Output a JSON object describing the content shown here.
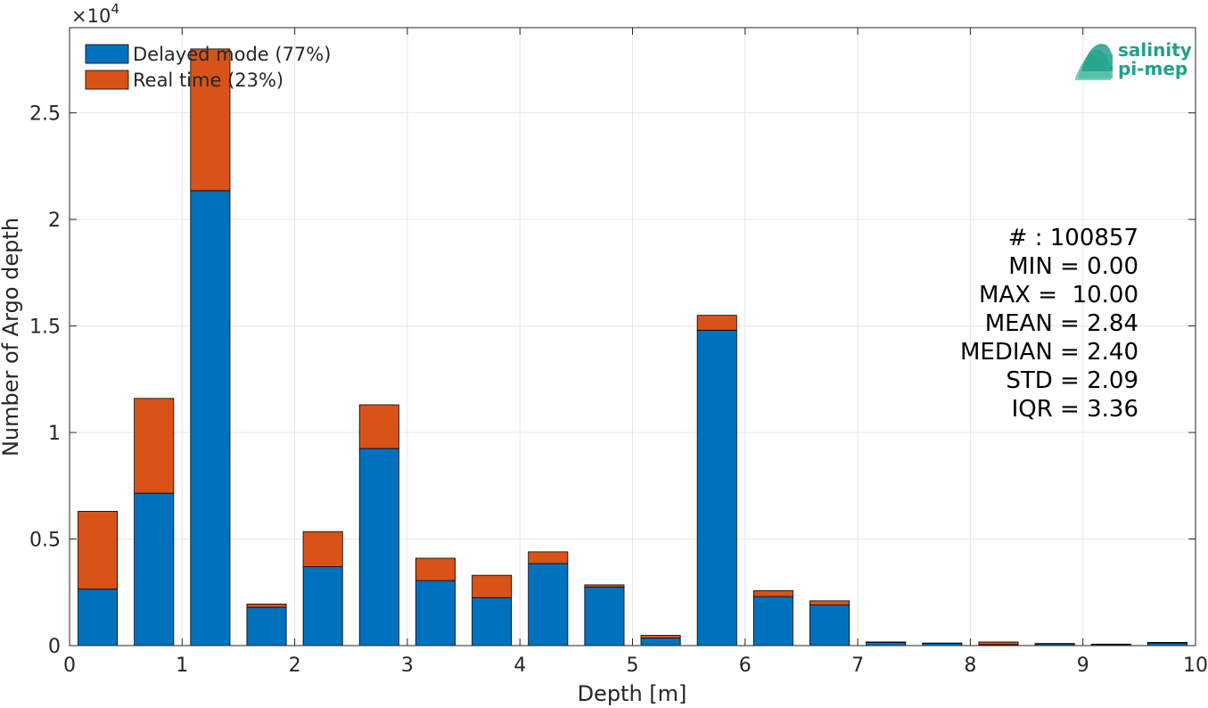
{
  "chart_data": {
    "type": "bar",
    "stacked": true,
    "xlabel": "Depth [m]",
    "ylabel": "Number of Argo depth",
    "xlim": [
      0,
      10
    ],
    "ylim": [
      0,
      29000
    ],
    "y_exponent_label": "×10",
    "y_exponent_power": "4",
    "x_ticks": [
      "0",
      "1",
      "2",
      "3",
      "4",
      "5",
      "6",
      "7",
      "8",
      "9",
      "10"
    ],
    "x_tick_values": [
      0,
      1,
      2,
      3,
      4,
      5,
      6,
      7,
      8,
      9,
      10
    ],
    "y_ticks": [
      "0",
      "0.5",
      "1",
      "1.5",
      "2",
      "2.5"
    ],
    "y_tick_values": [
      0,
      5000,
      10000,
      15000,
      20000,
      25000
    ],
    "grid": true,
    "legend_position": "top-left",
    "bin_centers": [
      0.25,
      0.75,
      1.25,
      1.75,
      2.25,
      2.75,
      3.25,
      3.75,
      4.25,
      4.75,
      5.25,
      5.75,
      6.25,
      6.75,
      7.25,
      7.75,
      8.25,
      8.75,
      9.25,
      9.75
    ],
    "bar_width": 0.35,
    "series": [
      {
        "name": "Delayed mode (77%)",
        "color": "#0072bd",
        "values": [
          2650,
          7150,
          21350,
          1800,
          3700,
          9250,
          3050,
          2250,
          3850,
          2750,
          350,
          14800,
          2300,
          1900,
          150,
          100,
          50,
          80,
          50,
          120
        ]
      },
      {
        "name": "Real time (23%)",
        "color": "#d95319",
        "values": [
          3650,
          4450,
          6650,
          150,
          1650,
          2050,
          1050,
          1050,
          550,
          100,
          130,
          700,
          280,
          200,
          20,
          20,
          120,
          20,
          20,
          30
        ]
      }
    ],
    "annotation_lines": [
      "# : 100857",
      "MIN = 0.00",
      "MAX =  10.00",
      "MEAN = 2.84",
      "MEDIAN = 2.40",
      "STD = 2.09",
      "IQR = 3.36"
    ]
  },
  "logo": {
    "line1": "salinity",
    "line2": "pi-mep",
    "color": "#21a08a"
  }
}
